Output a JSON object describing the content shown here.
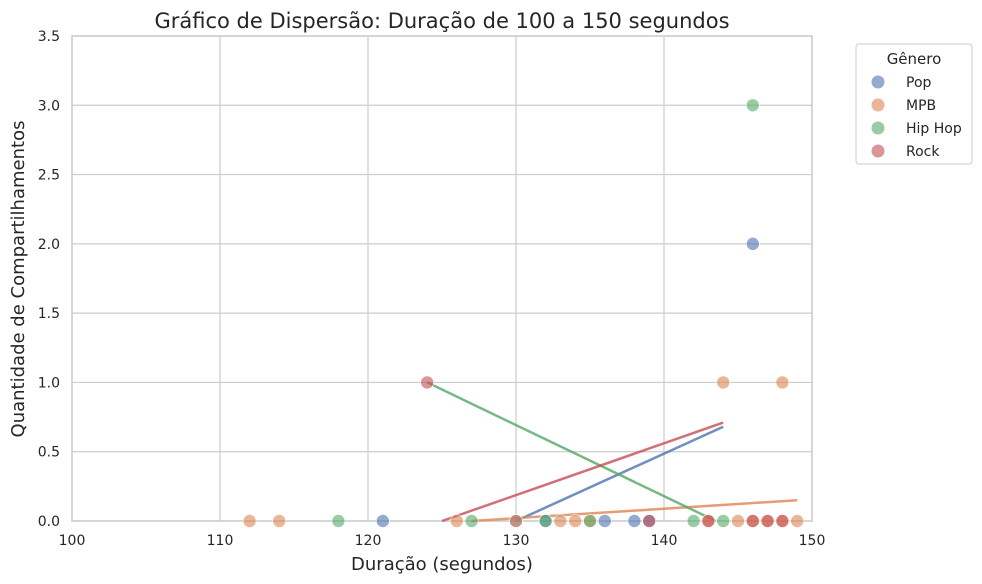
{
  "chart_data": {
    "type": "scatter",
    "title": "Gráfico de Dispersão: Duração de 100 a 150 segundos",
    "xlabel": "Duração (segundos)",
    "ylabel": "Quantidade de Compartilhamentos",
    "xlim": [
      100,
      150
    ],
    "ylim": [
      0,
      3.5
    ],
    "xticks": [
      "100",
      "110",
      "120",
      "130",
      "140",
      "150"
    ],
    "yticks": [
      "0.0",
      "0.5",
      "1.0",
      "1.5",
      "2.0",
      "2.5",
      "3.0",
      "3.5"
    ],
    "grid": true,
    "legend": {
      "title": "Gênero",
      "placement": "outside-top-right"
    },
    "series": [
      {
        "name": "Pop",
        "color": "#4c72b0",
        "points": [
          [
            121,
            0
          ],
          [
            130,
            0
          ],
          [
            132,
            0
          ],
          [
            136,
            0
          ],
          [
            138,
            0
          ],
          [
            139,
            0
          ],
          [
            146,
            2
          ]
        ],
        "trend": [
          [
            130,
            0
          ],
          [
            144,
            0.68
          ]
        ]
      },
      {
        "name": "MPB",
        "color": "#dd8452",
        "points": [
          [
            112,
            0
          ],
          [
            114,
            0
          ],
          [
            126,
            0
          ],
          [
            130,
            0
          ],
          [
            133,
            0
          ],
          [
            134,
            0
          ],
          [
            135,
            0
          ],
          [
            143,
            0
          ],
          [
            144,
            1
          ],
          [
            145,
            0
          ],
          [
            146,
            0
          ],
          [
            147,
            0
          ],
          [
            148,
            1
          ],
          [
            148,
            0
          ],
          [
            149,
            0
          ]
        ],
        "trend": [
          [
            127,
            0
          ],
          [
            149,
            0.15
          ]
        ]
      },
      {
        "name": "Hip Hop",
        "color": "#55a868",
        "points": [
          [
            118,
            0
          ],
          [
            127,
            0
          ],
          [
            132,
            0
          ],
          [
            135,
            0
          ],
          [
            142,
            0
          ],
          [
            144,
            0
          ],
          [
            146,
            3
          ]
        ],
        "trend": [
          [
            124,
            1.0
          ],
          [
            143.5,
            0
          ]
        ]
      },
      {
        "name": "Rock",
        "color": "#c44e52",
        "points": [
          [
            124,
            1
          ],
          [
            139,
            0
          ],
          [
            143,
            0
          ],
          [
            146,
            0
          ],
          [
            147,
            0
          ],
          [
            148,
            0
          ]
        ],
        "trend": [
          [
            125,
            0
          ],
          [
            144,
            0.71
          ]
        ]
      }
    ]
  }
}
